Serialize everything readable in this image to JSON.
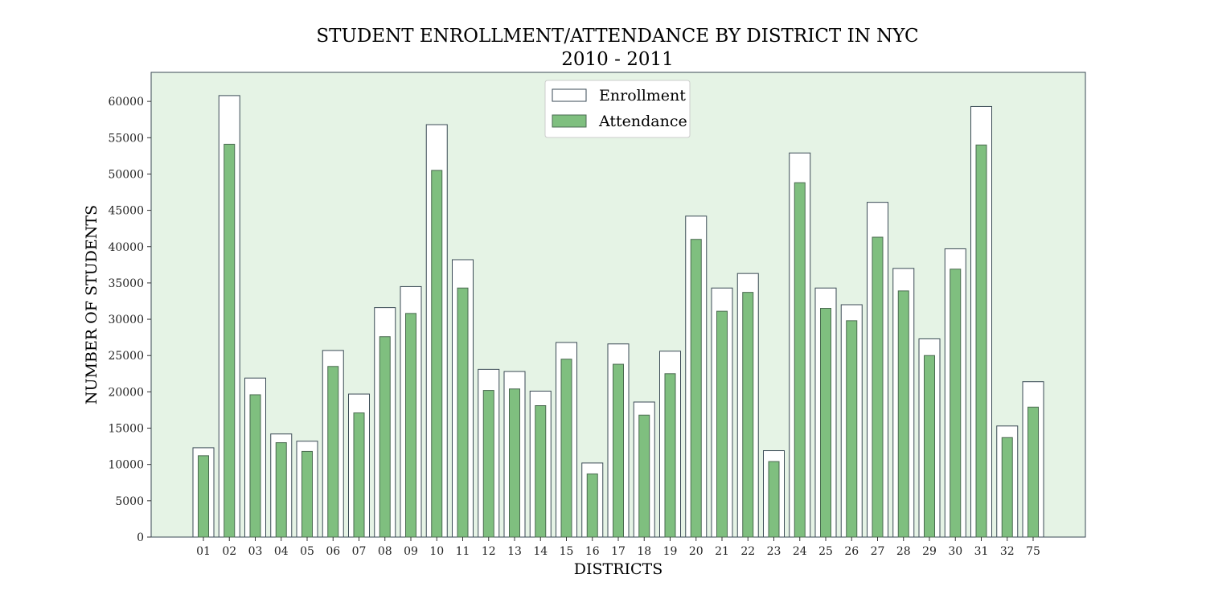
{
  "chart_data": {
    "type": "bar",
    "title": "STUDENT ENROLLMENT/ATTENDANCE BY DISTRICT IN NYC",
    "subtitle": "2010 - 2011",
    "xlabel": "DISTRICTS",
    "ylabel": "NUMBER OF STUDENTS",
    "ylim": [
      0,
      64000
    ],
    "yticks": [
      0,
      5000,
      10000,
      15000,
      20000,
      25000,
      30000,
      35000,
      40000,
      45000,
      50000,
      55000,
      60000
    ],
    "legend_position": "top-center",
    "grid": false,
    "categories": [
      "01",
      "02",
      "03",
      "04",
      "05",
      "06",
      "07",
      "08",
      "09",
      "10",
      "11",
      "12",
      "13",
      "14",
      "15",
      "16",
      "17",
      "18",
      "19",
      "20",
      "21",
      "22",
      "23",
      "24",
      "25",
      "26",
      "27",
      "28",
      "29",
      "30",
      "31",
      "32",
      "75"
    ],
    "series": [
      {
        "name": "Enrollment",
        "color": "#ffffff",
        "values": [
          12300,
          60800,
          21900,
          14200,
          13200,
          25700,
          19700,
          31600,
          34500,
          56800,
          38200,
          23100,
          22800,
          20100,
          26800,
          10200,
          26600,
          18600,
          25600,
          44200,
          34300,
          36300,
          11900,
          52900,
          34300,
          32000,
          46100,
          37000,
          27300,
          39700,
          59300,
          15300,
          21400
        ]
      },
      {
        "name": "Attendance",
        "color": "#7fbf7f",
        "values": [
          11200,
          54100,
          19600,
          13000,
          11800,
          23500,
          17100,
          27600,
          30800,
          50500,
          34300,
          20200,
          20400,
          18100,
          24500,
          8700,
          23800,
          16800,
          22500,
          41000,
          31100,
          33700,
          10400,
          48800,
          31500,
          29800,
          41300,
          33900,
          25000,
          36900,
          54000,
          13700,
          17900
        ]
      }
    ],
    "plot_background": "#e5f3e5",
    "edge_color": "#3a4a55"
  }
}
